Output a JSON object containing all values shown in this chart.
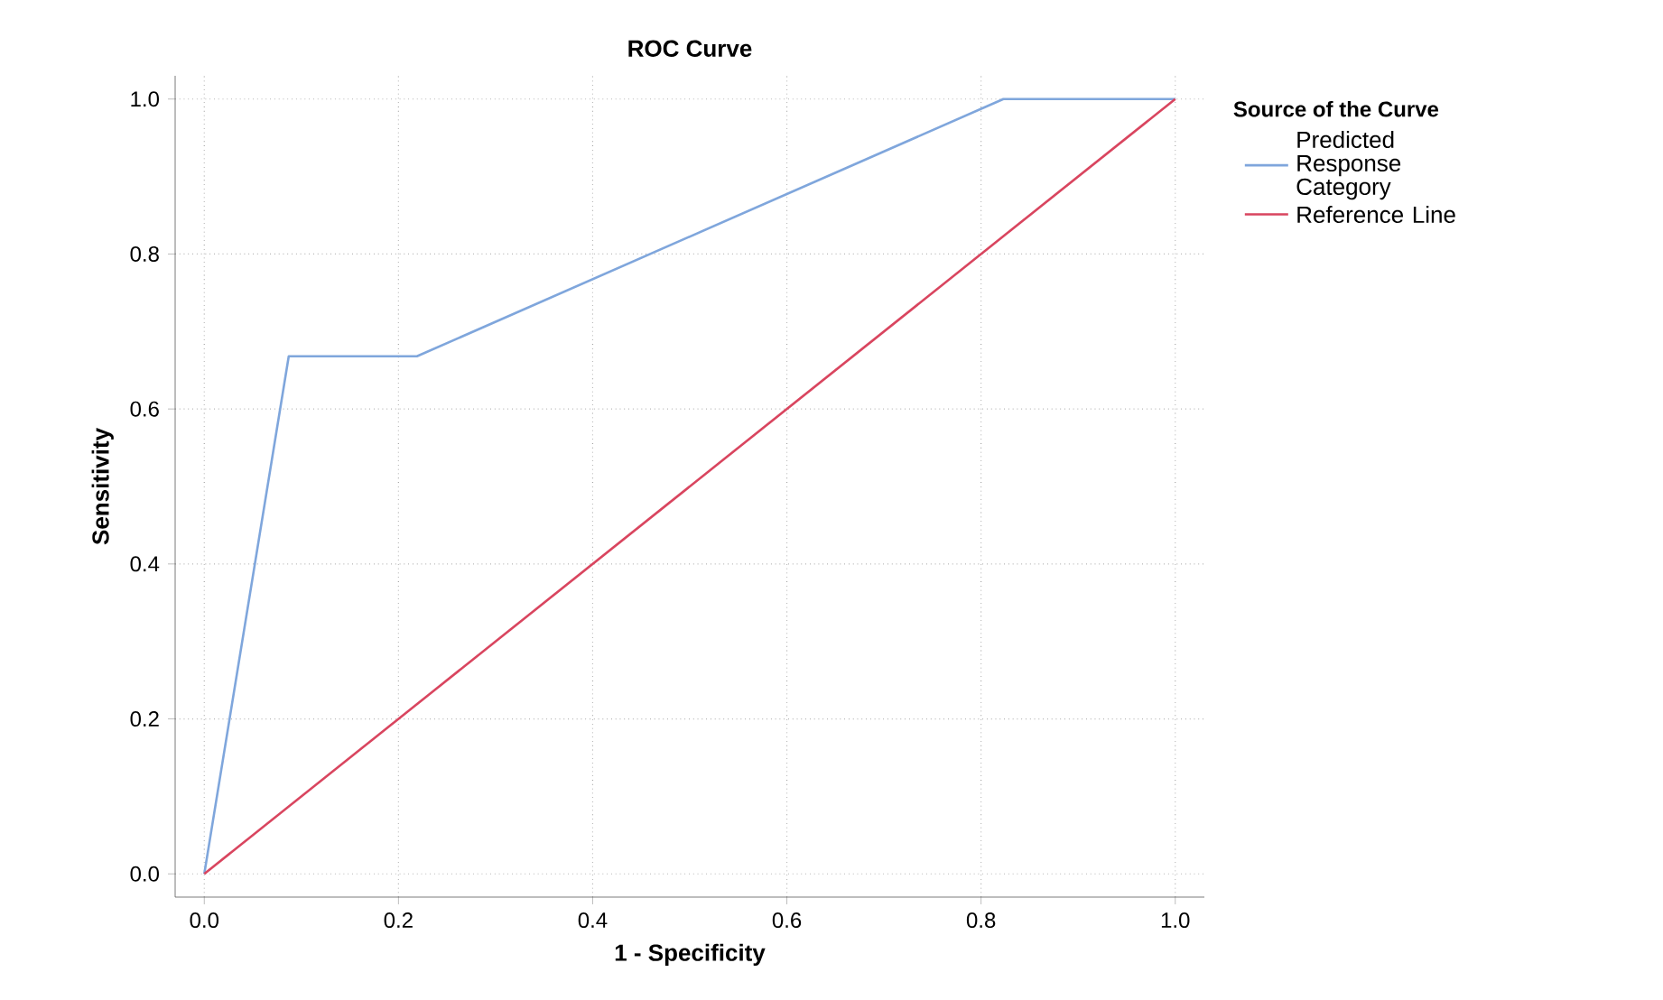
{
  "chart_data": {
    "type": "line",
    "title": "ROC Curve",
    "xlabel": "1 - Specificity",
    "ylabel": "Sensitivity",
    "legend_title": "Source of the Curve",
    "series": [
      {
        "name": "Predicted Response Category",
        "color": "#7fa6dc",
        "x": [
          0,
          0.087,
          0.219,
          0.823,
          1
        ],
        "values": [
          0,
          0.668,
          0.668,
          1,
          1
        ]
      },
      {
        "name": "Reference Line",
        "color": "#d9455f",
        "x": [
          0,
          1
        ],
        "values": [
          0,
          1
        ]
      }
    ],
    "xlim": [
      -0.03,
      1.03
    ],
    "ylim": [
      -0.03,
      1.03
    ],
    "xticks": [
      {
        "value": 0,
        "label": "0.0"
      },
      {
        "value": 0.2,
        "label": "0.2"
      },
      {
        "value": 0.4,
        "label": "0.4"
      },
      {
        "value": 0.6,
        "label": "0.6"
      },
      {
        "value": 0.8,
        "label": "0.8"
      },
      {
        "value": 1,
        "label": "1.0"
      }
    ],
    "yticks": [
      {
        "value": 0,
        "label": "0.0"
      },
      {
        "value": 0.2,
        "label": "0.2"
      },
      {
        "value": 0.4,
        "label": "0.4"
      },
      {
        "value": 0.6,
        "label": "0.6"
      },
      {
        "value": 0.8,
        "label": "0.8"
      },
      {
        "value": 1,
        "label": "1.0"
      }
    ],
    "grid": true,
    "legend": "top right",
    "marker": "none",
    "line_style": "solid"
  }
}
